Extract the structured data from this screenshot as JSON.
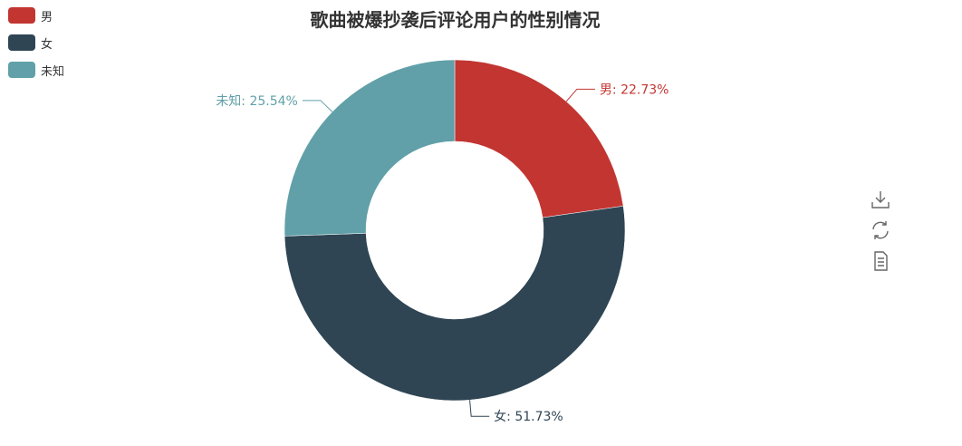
{
  "chart_data": {
    "type": "pie",
    "donut": true,
    "title": "歌曲被爆抄袭后评论用户的性别情况",
    "legend_position": "top-left",
    "categories": [
      "男",
      "女",
      "未知"
    ],
    "values": [
      22.73,
      51.73,
      25.54
    ],
    "colors": [
      "#c23531",
      "#2f4554",
      "#61a0a8"
    ],
    "labels": [
      "男: 22.73%",
      "女: 51.73%",
      "未知: 25.54%"
    ]
  },
  "toolbox": {
    "icons": [
      "download-icon",
      "refresh-icon",
      "data-view-icon"
    ]
  }
}
